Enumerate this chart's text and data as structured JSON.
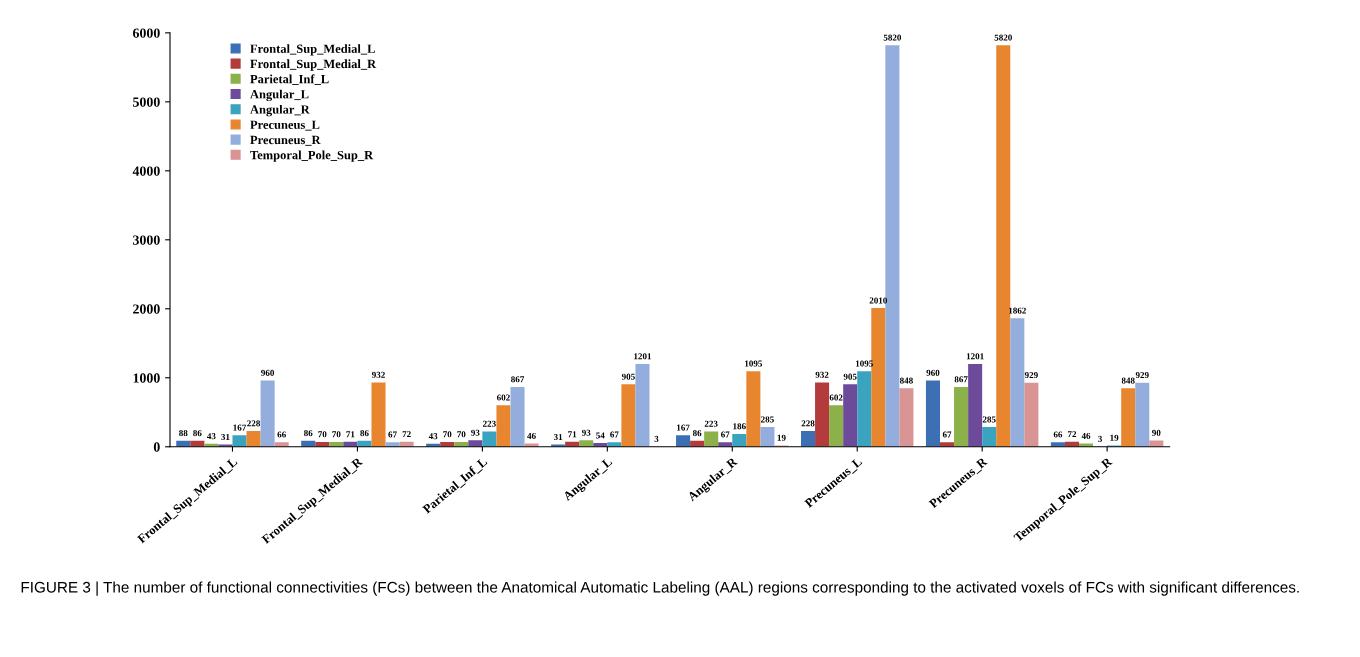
{
  "chart_data": {
    "type": "bar",
    "categories": [
      "Frontal_Sup_Medial_L",
      "Frontal_Sup_Medial_R",
      "Parietal_Inf_L",
      "Angular_L",
      "Angular_R",
      "Precuneus_L",
      "Precuneus_R",
      "Temporal_Pole_Sup_R"
    ],
    "series": [
      {
        "name": "Frontal_Sup_Medial_L",
        "color": "#3d6fb5",
        "values": [
          88,
          86,
          43,
          31,
          167,
          228,
          960,
          66
        ]
      },
      {
        "name": "Frontal_Sup_Medial_R",
        "color": "#b33b3b",
        "values": [
          86,
          70,
          70,
          71,
          86,
          932,
          67,
          72
        ]
      },
      {
        "name": "Parietal_Inf_L",
        "color": "#8cb04a",
        "values": [
          43,
          70,
          70,
          93,
          223,
          602,
          867,
          46
        ]
      },
      {
        "name": "Angular_L",
        "color": "#6e4b9a",
        "values": [
          31,
          71,
          93,
          54,
          67,
          905,
          1201,
          3
        ]
      },
      {
        "name": "Angular_R",
        "color": "#3aa3bf",
        "values": [
          167,
          86,
          223,
          67,
          186,
          1095,
          285,
          19
        ]
      },
      {
        "name": "Precuneus_L",
        "color": "#e8862f",
        "values": [
          228,
          932,
          602,
          905,
          1095,
          2010,
          5820,
          848
        ]
      },
      {
        "name": "Precuneus_R",
        "color": "#93aedd",
        "values": [
          960,
          67,
          867,
          1201,
          285,
          5820,
          1862,
          929
        ]
      },
      {
        "name": "Temporal_Pole_Sup_R",
        "color": "#d99594",
        "values": [
          66,
          72,
          46,
          3,
          19,
          848,
          929,
          90
        ]
      }
    ],
    "ylim": [
      0,
      6000
    ],
    "yticks": [
      0,
      1000,
      2000,
      3000,
      4000,
      5000,
      6000
    ],
    "data_labels": true,
    "legend": "top left",
    "grid": false,
    "annotations": [
      "FIGURE 3 | The number of functional connectivities (FCs) between the Anatomical Automatic Labeling (AAL) regions corresponding to the activated voxels of FCs with significant differences."
    ]
  }
}
